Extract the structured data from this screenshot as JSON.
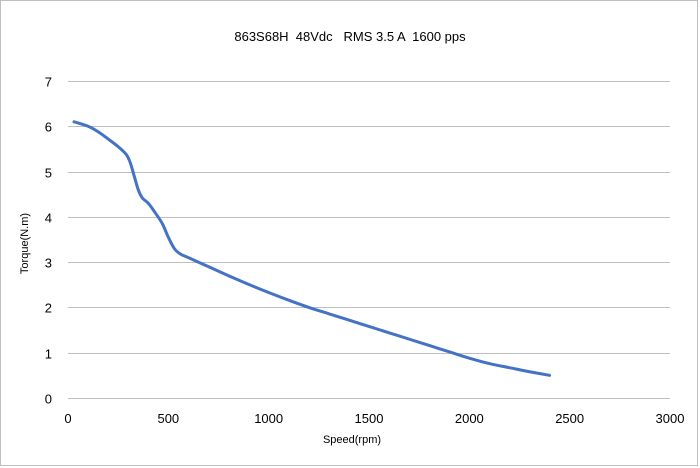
{
  "chart_data": {
    "type": "line",
    "title": "863S68H  48Vdc   RMS 3.5 A  1600 pps",
    "xlabel": "Speed(rpm)",
    "ylabel": "Torque(N.m)",
    "xlim": [
      0,
      3000
    ],
    "ylim": [
      0,
      7
    ],
    "xticks": [
      "0",
      "500",
      "1000",
      "1500",
      "2000",
      "2500",
      "3000"
    ],
    "yticks": [
      "0",
      "1",
      "2",
      "3",
      "4",
      "5",
      "6",
      "7"
    ],
    "grid": true,
    "legend": "none",
    "series": [
      {
        "color": "#4472c4",
        "x": [
          30,
          100,
          150,
          200,
          250,
          290,
          310,
          330,
          350,
          370,
          400,
          430,
          470,
          500,
          530,
          560,
          600,
          700,
          800,
          900,
          1000,
          1100,
          1200,
          1300,
          1400,
          1500,
          1600,
          1700,
          1800,
          1900,
          2000,
          2100,
          2200,
          2300,
          2400
        ],
        "y": [
          6.1,
          6.0,
          5.88,
          5.72,
          5.55,
          5.38,
          5.2,
          4.9,
          4.6,
          4.42,
          4.3,
          4.12,
          3.85,
          3.55,
          3.3,
          3.18,
          3.1,
          2.9,
          2.7,
          2.51,
          2.33,
          2.16,
          2.0,
          1.86,
          1.72,
          1.58,
          1.44,
          1.3,
          1.16,
          1.02,
          0.88,
          0.76,
          0.67,
          0.58,
          0.5
        ]
      }
    ]
  }
}
